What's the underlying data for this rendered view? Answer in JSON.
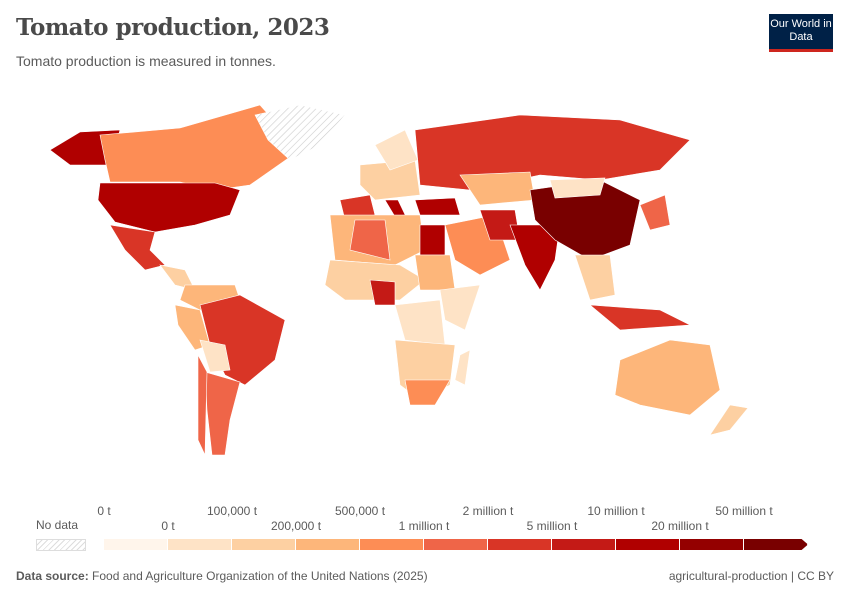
{
  "header": {
    "title": "Tomato production, 2023",
    "subtitle": "Tomato production is measured in tonnes.",
    "logo": "Our World in Data"
  },
  "legend": {
    "no_data_label": "No data",
    "top_labels": [
      "0 t",
      "100,000 t",
      "500,000 t",
      "2 million t",
      "10 million t",
      "50 million t"
    ],
    "bottom_labels": [
      "0 t",
      "200,000 t",
      "1 million t",
      "5 million t",
      "20 million t"
    ],
    "colors": [
      "#fff5eb",
      "#fee3c6",
      "#fdd0a2",
      "#fdb67a",
      "#fd8d55",
      "#ef6548",
      "#d93526",
      "#c41a16",
      "#b00000",
      "#940000",
      "#790000"
    ]
  },
  "footer": {
    "source_label": "Data source:",
    "source": "Food and Agriculture Organization of the United Nations (2025)",
    "license": "agricultural-production | CC BY"
  }
}
